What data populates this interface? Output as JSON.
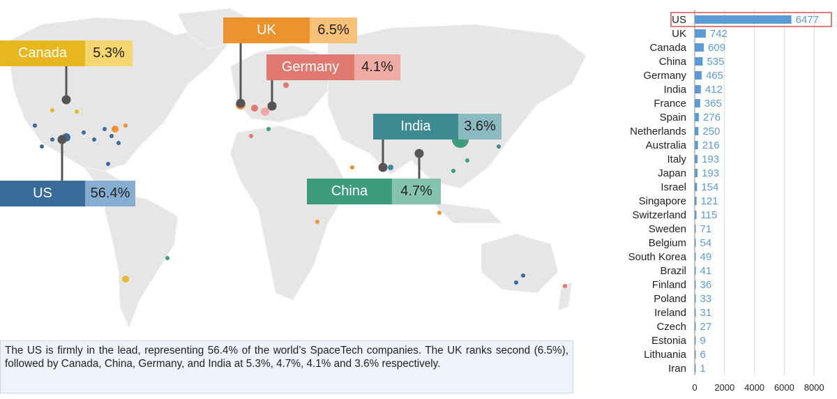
{
  "map": {
    "callouts": [
      {
        "country": "Canada",
        "pct": "5.3%",
        "color": "#e8b71d",
        "light": "#f6d66e"
      },
      {
        "country": "UK",
        "pct": "6.5%",
        "color": "#ec9330",
        "light": "#f7c179"
      },
      {
        "country": "Germany",
        "pct": "4.1%",
        "color": "#e07a70",
        "light": "#efaaa3"
      },
      {
        "country": "India",
        "pct": "3.6%",
        "color": "#3e8a93",
        "light": "#8bbac0"
      },
      {
        "country": "China",
        "pct": "4.7%",
        "color": "#3f9b7e",
        "light": "#86c3ae"
      },
      {
        "country": "US",
        "pct": "56.4%",
        "color": "#3b6b99",
        "light": "#86aed3"
      }
    ]
  },
  "caption": "The US is firmly in the lead, representing 56.4% of the world’s SpaceTech companies. The UK ranks second (6.5%), followed by Canada, China, Germany, and India at 5.3%, 4.7%, 4.1% and 3.6% respectively.",
  "chart_data": {
    "type": "bar",
    "orientation": "horizontal",
    "categories": [
      "US",
      "UK",
      "Canada",
      "China",
      "Germany",
      "India",
      "France",
      "Spain",
      "Netherlands",
      "Australia",
      "Italy",
      "Japan",
      "Israel",
      "Singapore",
      "Switzerland",
      "Sweden",
      "Belgium",
      "South Korea",
      "Brazil",
      "Finland",
      "Poland",
      "Ireland",
      "Czech",
      "Estonia",
      "Lithuania",
      "Iran"
    ],
    "values": [
      6477,
      742,
      609,
      535,
      465,
      412,
      365,
      276,
      250,
      216,
      193,
      193,
      154,
      121,
      115,
      71,
      54,
      49,
      41,
      36,
      33,
      31,
      27,
      9,
      6,
      1
    ],
    "xlim": [
      0,
      8600
    ],
    "xticks": [
      0,
      2000,
      4000,
      6000,
      8000
    ],
    "grid": true,
    "highlight": "US",
    "bar_color": "#5b9bd5",
    "label_color": "#5b9bd5",
    "highlight_border": "#d9534f"
  }
}
